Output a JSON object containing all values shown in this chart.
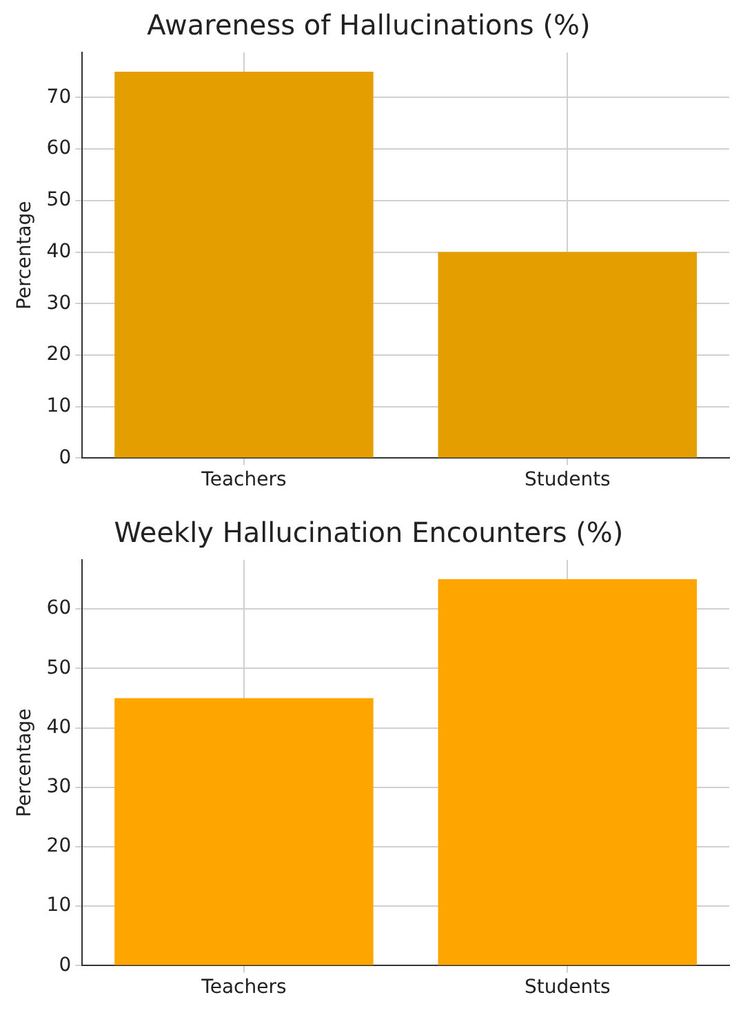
{
  "chart_data": [
    {
      "type": "bar",
      "title": "Awareness of Hallucinations (%)",
      "ylabel": "Percentage",
      "categories": [
        "Teachers",
        "Students"
      ],
      "values": [
        75,
        40
      ],
      "color": "#e59e00",
      "ylim": [
        0,
        78.75
      ],
      "yticks": [
        0,
        10,
        20,
        30,
        40,
        50,
        60,
        70
      ],
      "grid": true
    },
    {
      "type": "bar",
      "title": "Weekly Hallucination Encounters (%)",
      "ylabel": "Percentage",
      "categories": [
        "Teachers",
        "Students"
      ],
      "values": [
        45,
        65
      ],
      "color": "#ffa500",
      "ylim": [
        0,
        68.25
      ],
      "yticks": [
        0,
        10,
        20,
        30,
        40,
        50,
        60
      ],
      "grid": true
    }
  ]
}
